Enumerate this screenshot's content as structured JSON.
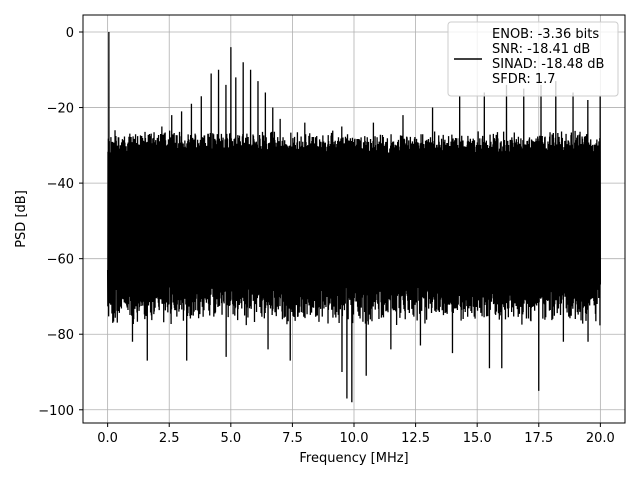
{
  "chart_data": {
    "type": "line",
    "xlabel": "Frequency [MHz]",
    "ylabel": "PSD [dB]",
    "xlim": [
      -1.0,
      21.0
    ],
    "ylim": [
      -103.5,
      4.5
    ],
    "xticks": [
      0.0,
      2.5,
      5.0,
      7.5,
      10.0,
      12.5,
      15.0,
      17.5,
      20.0
    ],
    "xtick_labels": [
      "0.0",
      "2.5",
      "5.0",
      "7.5",
      "10.0",
      "12.5",
      "15.0",
      "17.5",
      "20.0"
    ],
    "yticks": [
      0,
      -20,
      -40,
      -60,
      -80,
      -100
    ],
    "ytick_labels": [
      "0",
      "−20",
      "−40",
      "−60",
      "−80",
      "−100"
    ],
    "grid": true,
    "legend_position": "top-right",
    "legend_lines": [
      "ENOB: -3.36 bits",
      "SNR: -18.41 dB",
      "SINAD: -18.48 dB",
      "SFDR: 1.7"
    ],
    "series": [
      {
        "color": "#000000",
        "x_range": [
          0.0,
          20.0
        ],
        "fundamental": {
          "x": 0.05,
          "y": 0.0
        },
        "noise_band_top": -28,
        "noise_band_bottom": -70,
        "spurs": [
          {
            "x": 0.3,
            "y": -26
          },
          {
            "x": 1.7,
            "y": -27
          },
          {
            "x": 2.2,
            "y": -25
          },
          {
            "x": 2.6,
            "y": -22
          },
          {
            "x": 3.0,
            "y": -21
          },
          {
            "x": 3.4,
            "y": -19
          },
          {
            "x": 3.8,
            "y": -17
          },
          {
            "x": 4.2,
            "y": -11
          },
          {
            "x": 4.5,
            "y": -10
          },
          {
            "x": 4.8,
            "y": -14
          },
          {
            "x": 5.0,
            "y": -4
          },
          {
            "x": 5.2,
            "y": -12
          },
          {
            "x": 5.5,
            "y": -8
          },
          {
            "x": 5.8,
            "y": -10
          },
          {
            "x": 6.1,
            "y": -13
          },
          {
            "x": 6.4,
            "y": -16
          },
          {
            "x": 6.7,
            "y": -20
          },
          {
            "x": 7.0,
            "y": -23
          },
          {
            "x": 8.0,
            "y": -24
          },
          {
            "x": 9.5,
            "y": -25
          },
          {
            "x": 10.8,
            "y": -24
          },
          {
            "x": 12.0,
            "y": -22
          },
          {
            "x": 13.2,
            "y": -20
          },
          {
            "x": 14.3,
            "y": -17
          },
          {
            "x": 15.3,
            "y": -16
          },
          {
            "x": 16.2,
            "y": -14
          },
          {
            "x": 16.9,
            "y": -15
          },
          {
            "x": 17.6,
            "y": -14
          },
          {
            "x": 18.2,
            "y": -13
          },
          {
            "x": 18.9,
            "y": -16
          },
          {
            "x": 19.5,
            "y": -18
          },
          {
            "x": 20.0,
            "y": -17
          }
        ],
        "dips": [
          {
            "x": 0.2,
            "y": -77
          },
          {
            "x": 1.0,
            "y": -82
          },
          {
            "x": 1.6,
            "y": -87
          },
          {
            "x": 3.2,
            "y": -87
          },
          {
            "x": 4.8,
            "y": -86
          },
          {
            "x": 6.5,
            "y": -84
          },
          {
            "x": 7.4,
            "y": -87
          },
          {
            "x": 9.5,
            "y": -90
          },
          {
            "x": 9.7,
            "y": -97
          },
          {
            "x": 9.9,
            "y": -98
          },
          {
            "x": 10.5,
            "y": -91
          },
          {
            "x": 11.5,
            "y": -84
          },
          {
            "x": 12.7,
            "y": -83
          },
          {
            "x": 14.0,
            "y": -85
          },
          {
            "x": 15.5,
            "y": -89
          },
          {
            "x": 16.0,
            "y": -89
          },
          {
            "x": 17.5,
            "y": -95
          },
          {
            "x": 18.5,
            "y": -82
          },
          {
            "x": 19.5,
            "y": -82
          }
        ]
      }
    ]
  }
}
